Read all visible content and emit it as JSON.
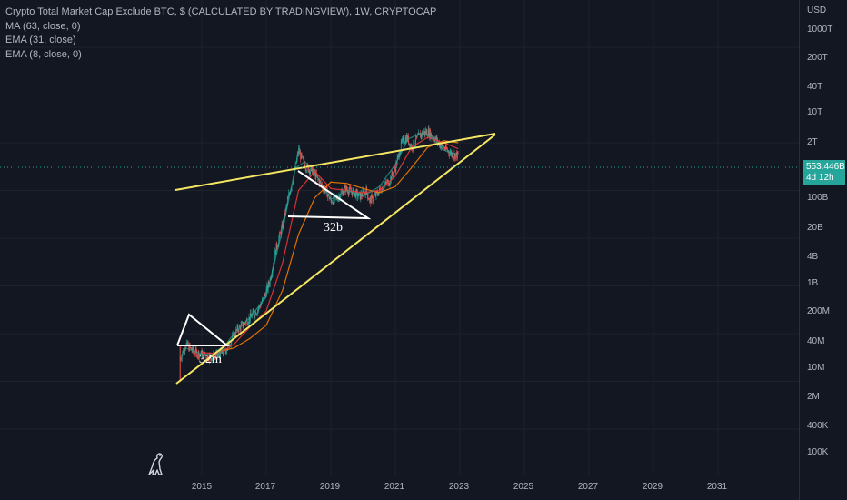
{
  "legend": {
    "title": "Crypto Total Market Cap Exclude BTC, $ (CALCULATED BY TRADINGVIEW), 1W, CRYPTOCAP",
    "ma": "MA (63, close, 0)",
    "ema31": "EMA (31, close)",
    "ema8": "EMA (8, close, 0)"
  },
  "price_axis": {
    "unit": "USD",
    "labels": [
      "1000T",
      "200T",
      "40T",
      "10T",
      "2T",
      "100B",
      "20B",
      "4B",
      "1B",
      "200M",
      "40M",
      "10M",
      "2M",
      "400K",
      "100K"
    ]
  },
  "price_badge": {
    "value": "553.446B",
    "countdown": "4d 12h"
  },
  "time_axis": {
    "labels": [
      "2015",
      "2017",
      "2019",
      "2021",
      "2023",
      "2025",
      "2027",
      "2029",
      "2031"
    ]
  },
  "annotations": {
    "left": "32m",
    "right": "32b"
  },
  "colors": {
    "background": "#131722",
    "up": "#26a69a",
    "down": "#ef5350",
    "trendline": "#f5e663",
    "ma63": "#f57c00",
    "ema31": "#e53935",
    "ema8": "#26a69a"
  },
  "chart_data": {
    "type": "line",
    "scale": "log",
    "x_unit": "year",
    "ylabel": "USD",
    "ylim": [
      70000,
      2000000000000000
    ],
    "xlim": [
      2013.3,
      2032.2
    ],
    "series": [
      {
        "style": "candles",
        "x": [
          2014.33,
          2014.5,
          2014.7,
          2014.9,
          2015.1,
          2015.3,
          2015.5,
          2015.7,
          2015.9,
          2016.1,
          2016.3,
          2016.5,
          2016.7,
          2016.9,
          2017.1,
          2017.3,
          2017.5,
          2017.7,
          2017.85,
          2018.0,
          2018.1,
          2018.25,
          2018.45,
          2018.65,
          2018.85,
          2019.0,
          2019.2,
          2019.45,
          2019.7,
          2019.9,
          2020.1,
          2020.2,
          2020.4,
          2020.6,
          2020.8,
          2021.0,
          2021.2,
          2021.35,
          2021.5,
          2021.7,
          2021.85,
          2022.0,
          2022.2,
          2022.4,
          2022.6,
          2022.8,
          2022.95
        ],
        "values": [
          30000000,
          60000000,
          45000000,
          38000000,
          36000000,
          32000000,
          35000000,
          40000000,
          70000000,
          120000000,
          160000000,
          220000000,
          300000000,
          500000000,
          1200000000,
          6000000000,
          18000000000,
          80000000000,
          200000000000,
          700000000000,
          450000000000,
          300000000000,
          250000000000,
          150000000000,
          100000000000,
          60000000000,
          70000000000,
          110000000000,
          90000000000,
          75000000000,
          100000000000,
          60000000000,
          80000000000,
          120000000000,
          150000000000,
          300000000000,
          1000000000000,
          1300000000000,
          800000000000,
          1300000000000,
          1600000000000,
          1700000000000,
          1300000000000,
          900000000000,
          700000000000,
          550000000000,
          553446000000
        ]
      },
      {
        "name": "MA (63, close, 0)",
        "x": [
          2015.5,
          2016.0,
          2016.5,
          2017.0,
          2017.5,
          2018.0,
          2018.5,
          2019.0,
          2019.5,
          2020.0,
          2020.5,
          2021.0,
          2021.5,
          2022.0,
          2022.5,
          2022.95
        ],
        "values": [
          42000000,
          50000000,
          80000000,
          150000000,
          800000000,
          12000000000,
          70000000000,
          150000000000,
          140000000000,
          110000000000,
          90000000000,
          120000000000,
          300000000000,
          800000000000,
          1100000000000,
          1000000000000
        ]
      },
      {
        "name": "EMA (31, close)",
        "x": [
          2015.0,
          2015.5,
          2016.0,
          2016.5,
          2017.0,
          2017.5,
          2018.0,
          2018.5,
          2019.0,
          2019.5,
          2020.0,
          2020.5,
          2021.0,
          2021.5,
          2022.0,
          2022.5,
          2022.95
        ],
        "values": [
          40000000,
          38000000,
          60000000,
          140000000,
          300000000,
          3000000000,
          100000000000,
          250000000000,
          110000000000,
          100000000000,
          90000000000,
          100000000000,
          200000000000,
          800000000000,
          1300000000000,
          1000000000000,
          750000000000
        ]
      },
      {
        "name": "EMA (8, close, 0)",
        "x": [
          2014.5,
          2015.0,
          2015.5,
          2016.0,
          2016.5,
          2017.0,
          2017.5,
          2017.9,
          2018.2,
          2018.6,
          2019.0,
          2019.5,
          2020.0,
          2020.5,
          2021.0,
          2021.4,
          2021.8,
          2022.1,
          2022.5,
          2022.95
        ],
        "values": [
          50000000,
          37000000,
          36000000,
          100000000,
          220000000,
          600000000,
          15000000000,
          300000000000,
          400000000000,
          180000000000,
          65000000000,
          100000000000,
          75000000000,
          120000000000,
          350000000000,
          1200000000000,
          1600000000000,
          1300000000000,
          700000000000,
          560000000000
        ]
      }
    ]
  }
}
